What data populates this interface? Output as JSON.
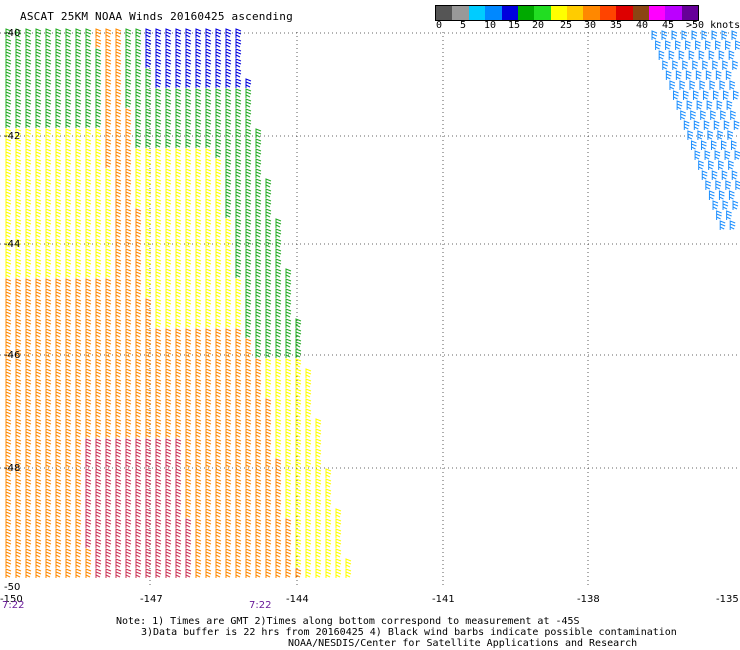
{
  "title": "ASCAT 25KM NOAA Winds 20160425 ascending",
  "colorbar": {
    "colors": [
      "#555555",
      "#999999",
      "#00ccff",
      "#0088ff",
      "#0000dd",
      "#00aa00",
      "#22dd22",
      "#ffff00",
      "#ffcc00",
      "#ff8800",
      "#ff4400",
      "#dd0000",
      "#8b4513",
      "#ff00ff",
      "#bb00ff",
      "#660099"
    ],
    "labels": [
      "0",
      "5",
      "10",
      "15",
      "20",
      "25",
      "30",
      "35",
      "40",
      "45",
      ">50 knots"
    ]
  },
  "map": {
    "lon_ticks": [
      "-150",
      "-147",
      "-144",
      "-141",
      "-138",
      "-135"
    ],
    "lat_ticks": [
      "-40",
      "-42",
      "-44",
      "-46",
      "-48",
      "-50"
    ],
    "gridlines": true
  },
  "time_labels": [
    "7:22",
    "7:22"
  ],
  "notes": [
    "Note: 1) Times are GMT 2)Times along bottom correspond to measurement at -45S",
    "3)Data buffer is 22 hrs from 20160425 4) Black wind barbs indicate possible contamination",
    "NOAA/NESDIS/Center for Satellite Applications and Research"
  ],
  "swaths": [
    {
      "name": "main-swath",
      "speed_colors": {
        "low": "#0000dd",
        "mid": "#22aa22",
        "high": "#ffff00",
        "very_high": "#ff8800",
        "extreme": "#cc3355"
      }
    },
    {
      "name": "right-swath",
      "color": "#1e90ff"
    }
  ]
}
